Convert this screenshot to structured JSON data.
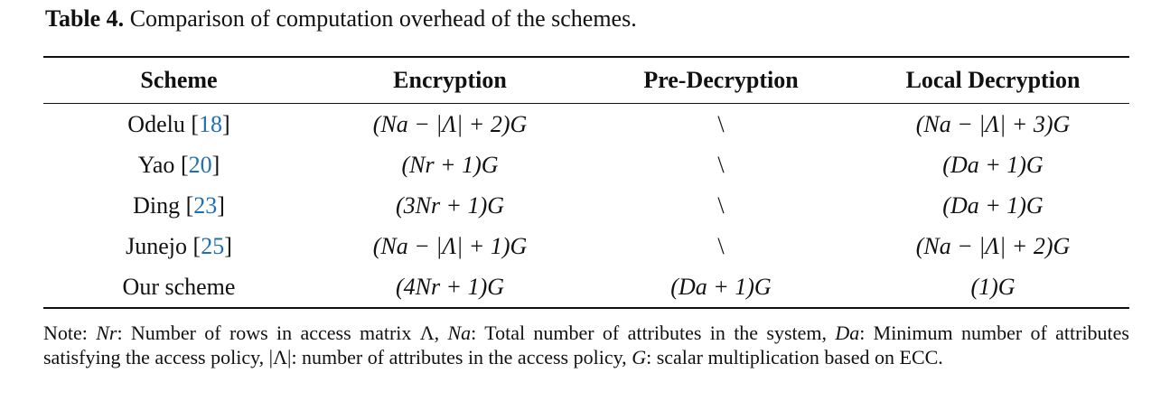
{
  "caption": {
    "label": "Table 4.",
    "text": "Comparison of computation overhead of the schemes."
  },
  "table": {
    "headers": [
      "Scheme",
      "Encryption",
      "Pre-Decryption",
      "Local Decryption"
    ],
    "rows": [
      {
        "scheme": "Odelu",
        "ref": "18",
        "encryption": "(Na − |Λ| + 2)G",
        "pre_decryption": "\\",
        "local_decryption": "(Na − |Λ| + 3)G"
      },
      {
        "scheme": "Yao",
        "ref": "20",
        "encryption": "(Nr + 1)G",
        "pre_decryption": "\\",
        "local_decryption": "(Da + 1)G"
      },
      {
        "scheme": "Ding",
        "ref": "23",
        "encryption": "(3Nr + 1)G",
        "pre_decryption": "\\",
        "local_decryption": "(Da + 1)G"
      },
      {
        "scheme": "Junejo",
        "ref": "25",
        "encryption": "(Na − |Λ| + 1)G",
        "pre_decryption": "\\",
        "local_decryption": "(Na − |Λ| + 2)G"
      },
      {
        "scheme": "Our scheme",
        "ref": "",
        "encryption": "(4Nr + 1)G",
        "pre_decryption": "(Da + 1)G",
        "local_decryption": "(1)G"
      }
    ]
  },
  "note": {
    "prefix": "Note:",
    "items": [
      {
        "sym": "Nr",
        "desc": ": Number of rows in access matrix Λ, "
      },
      {
        "sym": "Na",
        "desc": ": Total number of attributes in the system, "
      },
      {
        "sym": "Da",
        "desc": ": Minimum number of attributes satisfying the access policy, "
      },
      {
        "sym": "|Λ|",
        "desc": ": number of attributes in the access policy, "
      },
      {
        "sym": "G",
        "desc": ": scalar multiplication based on ECC."
      }
    ]
  },
  "colors": {
    "text": "#111111",
    "reference_link": "#1f6fb5"
  }
}
